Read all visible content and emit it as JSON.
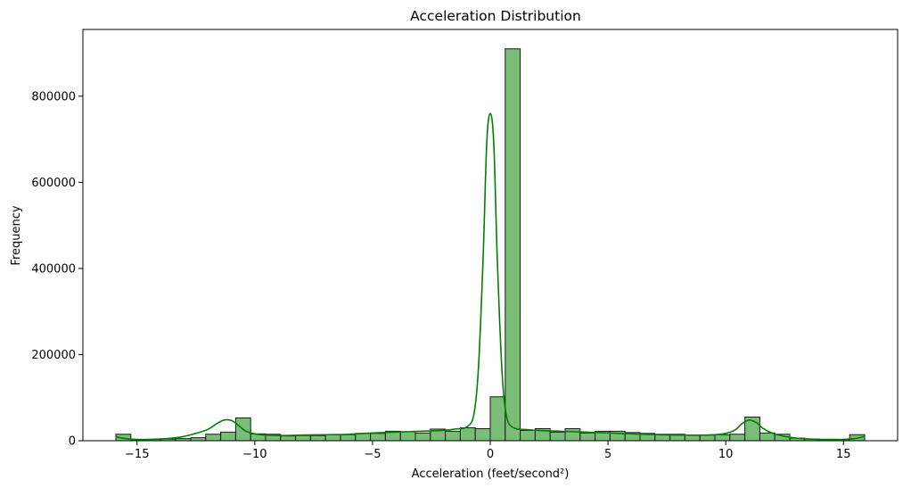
{
  "chart_data": {
    "type": "bar",
    "title": "Acceleration Distribution",
    "xlabel": "Acceleration (feet/second²)",
    "ylabel": "Frequency",
    "xlim": [
      -17.3,
      17.3
    ],
    "ylim": [
      0,
      955000
    ],
    "xticks": [
      -15,
      -10,
      -5,
      0,
      5,
      10,
      15
    ],
    "xtick_labels": [
      "−15",
      "−10",
      "−5",
      "0",
      "5",
      "10",
      "15"
    ],
    "yticks": [
      0,
      200000,
      400000,
      600000,
      800000
    ],
    "ytick_labels": [
      "0",
      "200000",
      "400000",
      "600000",
      "800000"
    ],
    "bin_start": -15.9,
    "bin_width": 0.636,
    "values": [
      15000,
      2000,
      3000,
      4000,
      5000,
      7000,
      15000,
      20000,
      53000,
      16000,
      15000,
      11000,
      12000,
      12000,
      14000,
      14000,
      17000,
      17000,
      22000,
      21000,
      18000,
      27000,
      22000,
      30000,
      28000,
      102000,
      910000,
      24000,
      28000,
      20000,
      28000,
      18000,
      22000,
      22000,
      19000,
      17000,
      15000,
      15000,
      13000,
      13000,
      14000,
      15000,
      55000,
      18000,
      15000,
      6000,
      4000,
      3000,
      3000,
      14000
    ],
    "kde": {
      "name": "",
      "color": "#008000",
      "x": [
        -15.9,
        -15.5,
        -15.0,
        -14.5,
        -14.0,
        -13.5,
        -13.0,
        -12.5,
        -12.0,
        -11.6,
        -11.3,
        -11.0,
        -10.7,
        -10.4,
        -10.0,
        -9.5,
        -9.0,
        -8.0,
        -7.0,
        -6.0,
        -5.0,
        -4.0,
        -3.0,
        -2.0,
        -1.5,
        -1.0,
        -0.7,
        -0.5,
        -0.3,
        -0.15,
        0.0,
        0.15,
        0.3,
        0.5,
        0.7,
        1.0,
        1.5,
        2.0,
        3.0,
        4.0,
        5.0,
        6.0,
        7.0,
        8.0,
        9.0,
        9.5,
        10.0,
        10.4,
        10.7,
        11.0,
        11.3,
        11.6,
        12.0,
        12.5,
        13.0,
        13.5,
        14.0,
        14.5,
        15.0,
        15.5,
        15.9
      ],
      "y": [
        9000,
        5000,
        3000,
        3000,
        4000,
        6000,
        10000,
        17000,
        26000,
        40000,
        48000,
        47000,
        36000,
        23000,
        16000,
        13000,
        12000,
        13000,
        14000,
        15000,
        18000,
        20000,
        22000,
        24000,
        27000,
        32000,
        60000,
        170000,
        430000,
        690000,
        760000,
        690000,
        420000,
        160000,
        55000,
        30000,
        26000,
        24000,
        22000,
        20000,
        18000,
        16000,
        14000,
        13000,
        13000,
        14000,
        17000,
        25000,
        40000,
        48000,
        42000,
        28000,
        17000,
        10000,
        6000,
        4000,
        3000,
        3000,
        3000,
        5000,
        10000
      ]
    }
  }
}
